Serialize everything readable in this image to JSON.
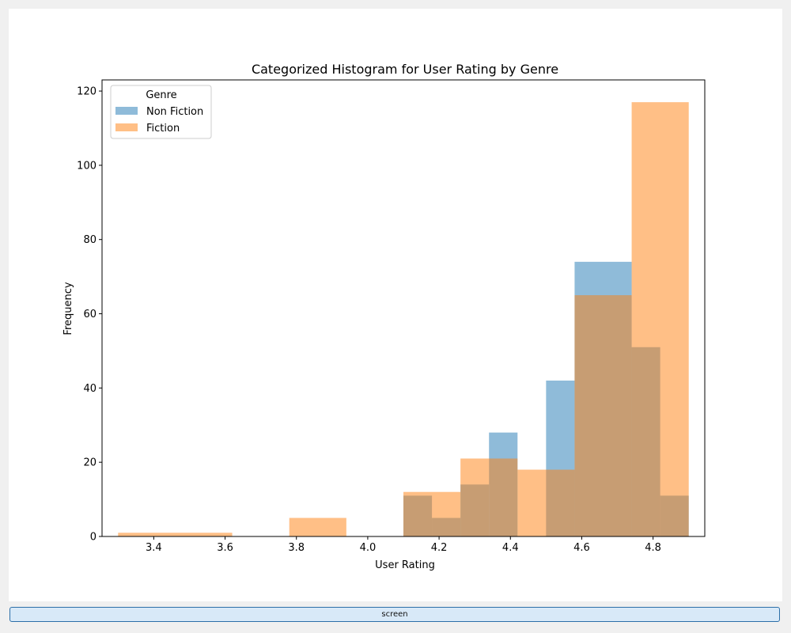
{
  "chart_data": {
    "type": "bar",
    "title": "Categorized Histogram for User Rating by Genre",
    "xlabel": "User Rating",
    "ylabel": "Frequency",
    "xlim": [
      3.255,
      4.945
    ],
    "ylim": [
      0,
      123
    ],
    "xticks": [
      "3.4",
      "3.6",
      "3.8",
      "4.0",
      "4.2",
      "4.4",
      "4.6",
      "4.8"
    ],
    "yticks": [
      "0",
      "20",
      "40",
      "60",
      "80",
      "100",
      "120"
    ],
    "legend": {
      "title": "Genre",
      "placement": "upper-left"
    },
    "series": [
      {
        "name": "Non Fiction",
        "color": "#1f77b4",
        "opacity": 0.5,
        "bins": [
          {
            "x0": 4.1,
            "x1": 4.18,
            "value": 11
          },
          {
            "x0": 4.18,
            "x1": 4.26,
            "value": 5
          },
          {
            "x0": 4.26,
            "x1": 4.34,
            "value": 14
          },
          {
            "x0": 4.34,
            "x1": 4.42,
            "value": 28
          },
          {
            "x0": 4.42,
            "x1": 4.5,
            "value": 0
          },
          {
            "x0": 4.5,
            "x1": 4.58,
            "value": 42
          },
          {
            "x0": 4.58,
            "x1": 4.74,
            "value": 74
          },
          {
            "x0": 4.74,
            "x1": 4.82,
            "value": 51
          },
          {
            "x0": 4.82,
            "x1": 4.9,
            "value": 11
          }
        ]
      },
      {
        "name": "Fiction",
        "color": "#ff7f0e",
        "opacity": 0.5,
        "bins": [
          {
            "x0": 3.3,
            "x1": 3.62,
            "value": 1
          },
          {
            "x0": 3.78,
            "x1": 3.94,
            "value": 5
          },
          {
            "x0": 4.1,
            "x1": 4.26,
            "value": 12
          },
          {
            "x0": 4.26,
            "x1": 4.34,
            "value": 21
          },
          {
            "x0": 4.34,
            "x1": 4.42,
            "value": 21
          },
          {
            "x0": 4.42,
            "x1": 4.58,
            "value": 18
          },
          {
            "x0": 4.58,
            "x1": 4.74,
            "value": 65
          },
          {
            "x0": 4.74,
            "x1": 4.9,
            "value": 117
          }
        ]
      }
    ]
  },
  "screen_button": {
    "label": "screen"
  }
}
